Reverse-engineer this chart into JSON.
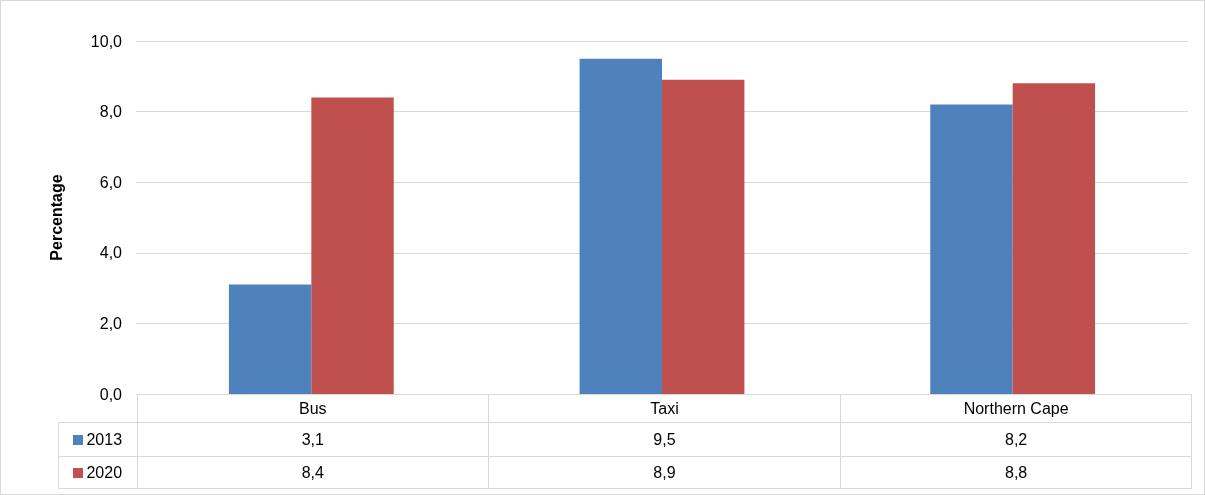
{
  "chart_data": {
    "type": "bar",
    "ylabel": "Percentage",
    "categories": [
      "Bus",
      "Taxi",
      "Northern Cape"
    ],
    "series": [
      {
        "name": "2013",
        "color": "#4f81bd",
        "values": [
          3.1,
          9.5,
          8.2
        ],
        "value_labels": [
          "3,1",
          "9,5",
          "8,2"
        ]
      },
      {
        "name": "2020",
        "color": "#c0504d",
        "values": [
          8.4,
          8.9,
          8.8
        ],
        "value_labels": [
          "8,4",
          "8,9",
          "8,8"
        ]
      }
    ],
    "ylim": [
      0,
      10
    ],
    "yticks": [
      {
        "value": 0,
        "label": "0,0"
      },
      {
        "value": 2,
        "label": "2,0"
      },
      {
        "value": 4,
        "label": "4,0"
      },
      {
        "value": 6,
        "label": "6,0"
      },
      {
        "value": 8,
        "label": "8,0"
      },
      {
        "value": 10,
        "label": "10,0"
      }
    ],
    "grid": "y",
    "legend": "bottom left"
  }
}
